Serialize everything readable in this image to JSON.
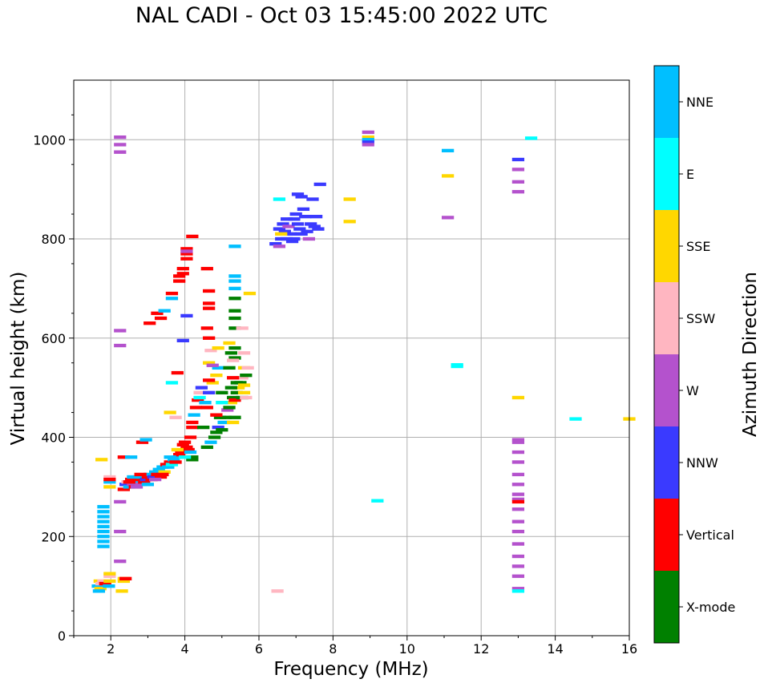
{
  "chart_data": {
    "type": "scatter",
    "title": "NAL CADI - Oct 03 15:45:00 2022 UTC",
    "xlabel": "Frequency (MHz)",
    "ylabel": "Virtual height (km)",
    "xlim": [
      1,
      16
    ],
    "ylim": [
      0,
      1120
    ],
    "xticks": [
      2,
      4,
      6,
      8,
      10,
      12,
      14,
      16
    ],
    "yticks": [
      0,
      200,
      400,
      600,
      800,
      1000
    ],
    "grid": true,
    "colorbar": {
      "label": "Azimuth Direction",
      "categories": [
        {
          "name": "X-mode",
          "color": "#008000"
        },
        {
          "name": "Vertical",
          "color": "#ff0000"
        },
        {
          "name": "NNW",
          "color": "#3a3aff"
        },
        {
          "name": "W",
          "color": "#b452cd"
        },
        {
          "name": "SSW",
          "color": "#ffb6c1"
        },
        {
          "name": "SSE",
          "color": "#ffd700"
        },
        {
          "name": "E",
          "color": "#00ffff"
        },
        {
          "name": "NNE",
          "color": "#00bfff"
        }
      ]
    },
    "points": [
      [
        1.7,
        110,
        "SSE"
      ],
      [
        1.65,
        100,
        "NNE"
      ],
      [
        1.75,
        105,
        "SSW"
      ],
      [
        1.72,
        95,
        "SSE"
      ],
      [
        1.68,
        90,
        "NNE"
      ],
      [
        1.8,
        110,
        "SSW"
      ],
      [
        1.85,
        105,
        "Vertical"
      ],
      [
        1.97,
        110,
        "SSE"
      ],
      [
        1.97,
        120,
        "SSW"
      ],
      [
        1.97,
        125,
        "SSE"
      ],
      [
        1.95,
        100,
        "NNE"
      ],
      [
        1.8,
        180,
        "NNE"
      ],
      [
        1.8,
        190,
        "NNE"
      ],
      [
        1.8,
        200,
        "NNE"
      ],
      [
        1.8,
        210,
        "NNE"
      ],
      [
        1.8,
        220,
        "NNE"
      ],
      [
        1.8,
        230,
        "NNE"
      ],
      [
        1.8,
        240,
        "NNE"
      ],
      [
        1.8,
        250,
        "NNE"
      ],
      [
        1.8,
        260,
        "NNE"
      ],
      [
        1.75,
        355,
        "SSE"
      ],
      [
        1.97,
        300,
        "SSE"
      ],
      [
        1.97,
        310,
        "NNE"
      ],
      [
        1.97,
        320,
        "SSW"
      ],
      [
        1.97,
        315,
        "Vertical"
      ],
      [
        2.25,
        1005,
        "W"
      ],
      [
        2.25,
        990,
        "W"
      ],
      [
        2.25,
        975,
        "W"
      ],
      [
        2.25,
        615,
        "W"
      ],
      [
        2.25,
        585,
        "W"
      ],
      [
        2.25,
        270,
        "W"
      ],
      [
        2.25,
        210,
        "W"
      ],
      [
        2.25,
        150,
        "W"
      ],
      [
        2.35,
        115,
        "SSE"
      ],
      [
        2.35,
        110,
        "SSE"
      ],
      [
        2.4,
        115,
        "Vertical"
      ],
      [
        2.3,
        90,
        "SSE"
      ],
      [
        2.35,
        360,
        "Vertical"
      ],
      [
        2.55,
        360,
        "NNE"
      ],
      [
        2.85,
        390,
        "Vertical"
      ],
      [
        2.95,
        395,
        "NNE"
      ],
      [
        2.35,
        295,
        "Vertical"
      ],
      [
        2.4,
        305,
        "NNW"
      ],
      [
        2.45,
        310,
        "SSW"
      ],
      [
        2.5,
        300,
        "NNE"
      ],
      [
        2.55,
        315,
        "Vertical"
      ],
      [
        2.6,
        305,
        "W"
      ],
      [
        2.65,
        300,
        "Vertical"
      ],
      [
        2.7,
        310,
        "NNE"
      ],
      [
        2.75,
        315,
        "Vertical"
      ],
      [
        2.8,
        305,
        "W"
      ],
      [
        2.85,
        320,
        "NNE"
      ],
      [
        2.9,
        310,
        "Vertical"
      ],
      [
        2.95,
        315,
        "NNW"
      ],
      [
        3.0,
        320,
        "Vertical"
      ],
      [
        3.05,
        325,
        "NNE"
      ],
      [
        3.1,
        315,
        "Vertical"
      ],
      [
        3.15,
        320,
        "NNW"
      ],
      [
        3.2,
        330,
        "NNE"
      ],
      [
        3.25,
        325,
        "Vertical"
      ],
      [
        3.3,
        335,
        "NNE"
      ],
      [
        3.35,
        320,
        "Vertical"
      ],
      [
        3.4,
        340,
        "NNE"
      ],
      [
        3.45,
        330,
        "SSE"
      ],
      [
        3.5,
        345,
        "Vertical"
      ],
      [
        3.55,
        340,
        "NNE"
      ],
      [
        3.6,
        350,
        "Vertical"
      ],
      [
        3.65,
        345,
        "E"
      ],
      [
        3.7,
        355,
        "NNE"
      ],
      [
        3.75,
        350,
        "Vertical"
      ],
      [
        3.8,
        360,
        "NNE"
      ],
      [
        3.85,
        365,
        "Vertical"
      ],
      [
        3.9,
        370,
        "Vertical"
      ],
      [
        3.95,
        385,
        "Vertical"
      ],
      [
        4.0,
        390,
        "Vertical"
      ],
      [
        4.05,
        380,
        "Vertical"
      ],
      [
        4.1,
        375,
        "Vertical"
      ],
      [
        4.15,
        370,
        "NNE"
      ],
      [
        4.2,
        360,
        "Green"
      ],
      [
        4.2,
        355,
        "X-mode"
      ],
      [
        2.5,
        310,
        "Vertical"
      ],
      [
        2.6,
        320,
        "NNE"
      ],
      [
        2.7,
        300,
        "W"
      ],
      [
        2.8,
        325,
        "Vertical"
      ],
      [
        3.0,
        305,
        "NNE"
      ],
      [
        3.2,
        315,
        "W"
      ],
      [
        3.4,
        325,
        "Vertical"
      ],
      [
        3.6,
        360,
        "NNE"
      ],
      [
        3.8,
        375,
        "SSE"
      ],
      [
        4.0,
        360,
        "E"
      ],
      [
        3.05,
        630,
        "Vertical"
      ],
      [
        3.25,
        650,
        "Vertical"
      ],
      [
        3.35,
        640,
        "Vertical"
      ],
      [
        3.45,
        655,
        "NNE"
      ],
      [
        3.65,
        680,
        "NNE"
      ],
      [
        3.65,
        690,
        "Vertical"
      ],
      [
        3.85,
        715,
        "Vertical"
      ],
      [
        3.85,
        725,
        "Vertical"
      ],
      [
        3.95,
        740,
        "Vertical"
      ],
      [
        3.95,
        730,
        "Vertical"
      ],
      [
        4.05,
        760,
        "Vertical"
      ],
      [
        4.05,
        770,
        "Vertical"
      ],
      [
        4.05,
        780,
        "Vertical"
      ],
      [
        4.05,
        775,
        "W"
      ],
      [
        4.2,
        805,
        "Vertical"
      ],
      [
        4.05,
        645,
        "NNW"
      ],
      [
        3.95,
        595,
        "NNW"
      ],
      [
        3.8,
        530,
        "Vertical"
      ],
      [
        3.65,
        510,
        "E"
      ],
      [
        3.6,
        450,
        "SSE"
      ],
      [
        3.75,
        440,
        "SSW"
      ],
      [
        4.15,
        400,
        "Vertical"
      ],
      [
        4.2,
        420,
        "Vertical"
      ],
      [
        4.2,
        430,
        "Vertical"
      ],
      [
        4.25,
        445,
        "NNE"
      ],
      [
        4.3,
        460,
        "Vertical"
      ],
      [
        4.35,
        475,
        "Vertical"
      ],
      [
        4.4,
        480,
        "E"
      ],
      [
        4.4,
        490,
        "SSW"
      ],
      [
        4.45,
        500,
        "NNW"
      ],
      [
        4.5,
        420,
        "X-mode"
      ],
      [
        4.6,
        380,
        "X-mode"
      ],
      [
        4.7,
        390,
        "NNE"
      ],
      [
        4.8,
        400,
        "X-mode"
      ],
      [
        4.85,
        410,
        "X-mode"
      ],
      [
        4.9,
        420,
        "NNW"
      ],
      [
        5.0,
        415,
        "X-mode"
      ],
      [
        5.05,
        430,
        "NNE"
      ],
      [
        5.1,
        440,
        "X-mode"
      ],
      [
        5.15,
        455,
        "W"
      ],
      [
        5.2,
        460,
        "X-mode"
      ],
      [
        5.25,
        470,
        "SSE"
      ],
      [
        5.3,
        480,
        "X-mode"
      ],
      [
        5.35,
        475,
        "Vertical"
      ],
      [
        5.4,
        490,
        "X-mode"
      ],
      [
        5.45,
        500,
        "SSE"
      ],
      [
        5.5,
        510,
        "X-mode"
      ],
      [
        5.55,
        520,
        "SSW"
      ],
      [
        5.6,
        540,
        "SSE"
      ],
      [
        5.65,
        525,
        "X-mode"
      ],
      [
        5.35,
        440,
        "X-mode"
      ],
      [
        5.3,
        430,
        "SSE"
      ],
      [
        4.95,
        440,
        "X-mode"
      ],
      [
        4.85,
        445,
        "Vertical"
      ],
      [
        4.6,
        460,
        "Vertical"
      ],
      [
        4.55,
        470,
        "NNE"
      ],
      [
        4.65,
        490,
        "NNW"
      ],
      [
        4.75,
        510,
        "SSE"
      ],
      [
        4.85,
        525,
        "SSE"
      ],
      [
        4.9,
        540,
        "NNE"
      ],
      [
        5.0,
        470,
        "E"
      ],
      [
        5.0,
        490,
        "X-mode"
      ],
      [
        5.25,
        500,
        "X-mode"
      ],
      [
        5.35,
        560,
        "X-mode"
      ],
      [
        5.35,
        580,
        "X-mode"
      ],
      [
        5.35,
        620,
        "X-mode"
      ],
      [
        5.35,
        640,
        "X-mode"
      ],
      [
        5.35,
        655,
        "X-mode"
      ],
      [
        5.35,
        680,
        "X-mode"
      ],
      [
        5.35,
        700,
        "NNE"
      ],
      [
        5.35,
        715,
        "NNE"
      ],
      [
        5.35,
        725,
        "NNE"
      ],
      [
        5.35,
        785,
        "NNE"
      ],
      [
        5.55,
        620,
        "SSW"
      ],
      [
        5.6,
        570,
        "SSW"
      ],
      [
        5.7,
        540,
        "SSW"
      ],
      [
        5.75,
        690,
        "SSE"
      ],
      [
        4.6,
        740,
        "Vertical"
      ],
      [
        4.65,
        695,
        "Vertical"
      ],
      [
        4.65,
        670,
        "Vertical"
      ],
      [
        4.65,
        660,
        "Vertical"
      ],
      [
        4.6,
        620,
        "Vertical"
      ],
      [
        4.65,
        600,
        "Vertical"
      ],
      [
        4.7,
        575,
        "SSW"
      ],
      [
        4.65,
        550,
        "SSE"
      ],
      [
        4.75,
        545,
        "W"
      ],
      [
        4.65,
        515,
        "Vertical"
      ],
      [
        4.9,
        580,
        "SSE"
      ],
      [
        5.2,
        590,
        "SSE"
      ],
      [
        5.25,
        570,
        "X-mode"
      ],
      [
        5.3,
        555,
        "SSW"
      ],
      [
        5.2,
        540,
        "X-mode"
      ],
      [
        5.3,
        520,
        "Vertical"
      ],
      [
        5.4,
        510,
        "X-mode"
      ],
      [
        5.6,
        490,
        "SSE"
      ],
      [
        5.6,
        505,
        "SSE"
      ],
      [
        5.55,
        480,
        "X-mode"
      ],
      [
        5.65,
        480,
        "SSW"
      ],
      [
        6.45,
        790,
        "NNW"
      ],
      [
        6.55,
        785,
        "W"
      ],
      [
        6.6,
        800,
        "NNW"
      ],
      [
        6.55,
        820,
        "NNW"
      ],
      [
        6.65,
        830,
        "NNW"
      ],
      [
        6.7,
        815,
        "NNW"
      ],
      [
        6.75,
        840,
        "NNW"
      ],
      [
        6.8,
        825,
        "W"
      ],
      [
        6.85,
        810,
        "NNW"
      ],
      [
        6.9,
        795,
        "NNW"
      ],
      [
        6.95,
        840,
        "NNW"
      ],
      [
        7.0,
        850,
        "NNW"
      ],
      [
        7.05,
        830,
        "NNW"
      ],
      [
        7.1,
        820,
        "NNW"
      ],
      [
        7.15,
        810,
        "NNW"
      ],
      [
        7.2,
        860,
        "NNW"
      ],
      [
        7.25,
        845,
        "NNW"
      ],
      [
        7.3,
        815,
        "NNW"
      ],
      [
        7.35,
        800,
        "W"
      ],
      [
        7.4,
        830,
        "NNW"
      ],
      [
        7.45,
        880,
        "NNW"
      ],
      [
        7.5,
        825,
        "NNW"
      ],
      [
        7.55,
        845,
        "NNW"
      ],
      [
        7.6,
        820,
        "NNW"
      ],
      [
        7.65,
        910,
        "NNW"
      ],
      [
        7.05,
        890,
        "NNW"
      ],
      [
        7.15,
        885,
        "NNW"
      ],
      [
        6.55,
        880,
        "E"
      ],
      [
        6.75,
        800,
        "NNW"
      ],
      [
        6.95,
        800,
        "NNW"
      ],
      [
        6.6,
        810,
        "SSE"
      ],
      [
        6.5,
        90,
        "SSW"
      ],
      [
        8.45,
        880,
        "SSE"
      ],
      [
        8.45,
        835,
        "SSE"
      ],
      [
        8.95,
        1015,
        "W"
      ],
      [
        8.95,
        1005,
        "SSE"
      ],
      [
        8.95,
        1000,
        "NNE"
      ],
      [
        8.95,
        995,
        "NNW"
      ],
      [
        8.95,
        990,
        "W"
      ],
      [
        9.2,
        272,
        "E"
      ],
      [
        11.1,
        978,
        "NNE"
      ],
      [
        11.1,
        927,
        "SSE"
      ],
      [
        11.1,
        843,
        "W"
      ],
      [
        11.35,
        543,
        "E"
      ],
      [
        11.35,
        546,
        "E"
      ],
      [
        13.0,
        480,
        "SSE"
      ],
      [
        13.0,
        395,
        "W"
      ],
      [
        13.0,
        390,
        "W"
      ],
      [
        13.0,
        370,
        "W"
      ],
      [
        13.0,
        350,
        "W"
      ],
      [
        13.0,
        325,
        "W"
      ],
      [
        13.0,
        305,
        "W"
      ],
      [
        13.0,
        285,
        "W"
      ],
      [
        13.0,
        275,
        "W"
      ],
      [
        13.0,
        270,
        "Vertical"
      ],
      [
        13.0,
        255,
        "W"
      ],
      [
        13.0,
        230,
        "W"
      ],
      [
        13.0,
        210,
        "W"
      ],
      [
        13.0,
        185,
        "W"
      ],
      [
        13.0,
        160,
        "W"
      ],
      [
        13.0,
        140,
        "W"
      ],
      [
        13.0,
        120,
        "W"
      ],
      [
        13.0,
        95,
        "W"
      ],
      [
        13.0,
        90,
        "E"
      ],
      [
        13.0,
        960,
        "NNW"
      ],
      [
        13.0,
        940,
        "W"
      ],
      [
        13.0,
        915,
        "W"
      ],
      [
        13.0,
        895,
        "W"
      ],
      [
        13.35,
        1003,
        "E"
      ],
      [
        14.55,
        437,
        "E"
      ],
      [
        16.0,
        437,
        "SSE"
      ]
    ]
  }
}
